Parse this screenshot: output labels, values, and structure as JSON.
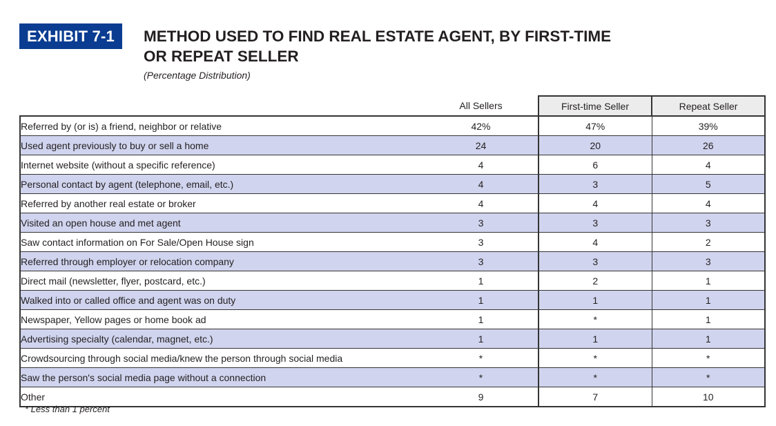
{
  "exhibit_label": "EXHIBIT 7-1",
  "title_line1": "METHOD USED TO FIND REAL ESTATE AGENT, BY FIRST-TIME",
  "title_line2": "OR REPEAT SELLER",
  "subtitle": "(Percentage Distribution)",
  "columns": [
    "All Sellers",
    "First-time Seller",
    "Repeat Seller"
  ],
  "rows": [
    {
      "label": "Referred by (or is) a friend, neighbor or relative",
      "all": "42%",
      "first": "47%",
      "repeat": "39%"
    },
    {
      "label": "Used agent previously to buy or sell a home",
      "all": "24",
      "first": "20",
      "repeat": "26"
    },
    {
      "label": "Internet website (without a specific reference)",
      "all": "4",
      "first": "6",
      "repeat": "4"
    },
    {
      "label": "Personal contact by agent (telephone, email, etc.)",
      "all": "4",
      "first": "3",
      "repeat": "5"
    },
    {
      "label": "Referred by another real estate or broker",
      "all": "4",
      "first": "4",
      "repeat": "4"
    },
    {
      "label": "Visited an open house and met agent",
      "all": "3",
      "first": "3",
      "repeat": "3"
    },
    {
      "label": "Saw contact information on For Sale/Open House sign",
      "all": "3",
      "first": "4",
      "repeat": "2"
    },
    {
      "label": "Referred through employer or relocation company",
      "all": "3",
      "first": "3",
      "repeat": "3"
    },
    {
      "label": "Direct mail (newsletter, flyer, postcard, etc.)",
      "all": "1",
      "first": "2",
      "repeat": "1"
    },
    {
      "label": "Walked into or called office and agent was on duty",
      "all": "1",
      "first": "1",
      "repeat": "1"
    },
    {
      "label": "Newspaper, Yellow pages or home book ad",
      "all": "1",
      "first": "*",
      "repeat": "1"
    },
    {
      "label": "Advertising specialty (calendar, magnet, etc.)",
      "all": "1",
      "first": "1",
      "repeat": "1"
    },
    {
      "label": "Crowdsourcing through social media/knew the person through social media",
      "all": "*",
      "first": "*",
      "repeat": "*"
    },
    {
      "label": "Saw the person's social media page without a connection",
      "all": "*",
      "first": "*",
      "repeat": "*"
    },
    {
      "label": "Other",
      "all": "9",
      "first": "7",
      "repeat": "10"
    }
  ],
  "footnote": "* Less than 1 percent",
  "colors": {
    "badge": "#0a3d91",
    "stripe": "#d0d4ee",
    "header_bg": "#ececec"
  }
}
